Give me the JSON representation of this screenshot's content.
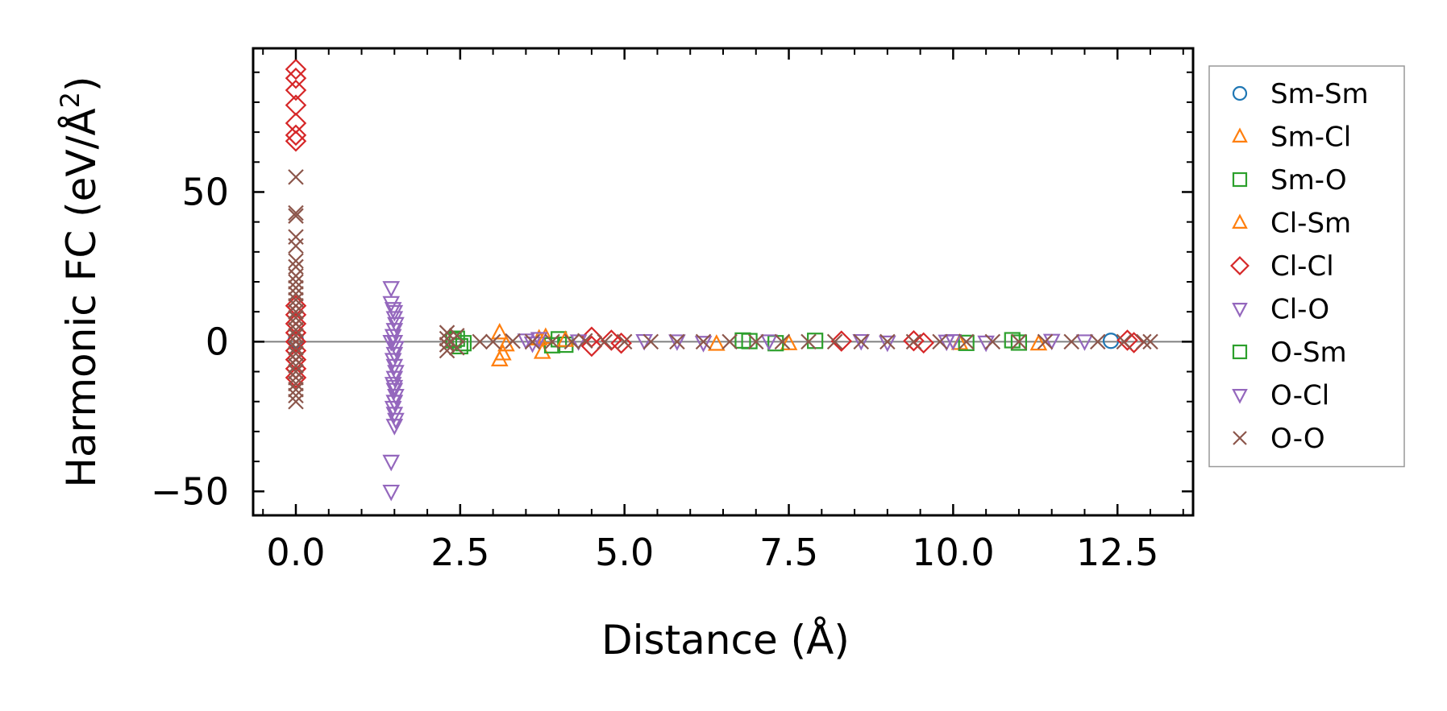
{
  "chart_data": {
    "type": "scatter",
    "title": "",
    "xlabel": "Distance (Å)",
    "ylabel": "Harmonic FC (eV/Å²)",
    "ylabel_parts": {
      "main": "Harmonic FC (eV/Å",
      "sup": "2",
      "close": ")"
    },
    "xlim": [
      -0.65,
      13.65
    ],
    "ylim": [
      -58,
      98
    ],
    "xticks": [
      0.0,
      2.5,
      5.0,
      7.5,
      10.0,
      12.5
    ],
    "xtick_labels": [
      "0.0",
      "2.5",
      "5.0",
      "7.5",
      "10.0",
      "12.5"
    ],
    "yticks": [
      -50,
      0,
      50
    ],
    "ytick_labels": [
      "−50",
      "0",
      "50"
    ],
    "reference_line_y": 0,
    "grid": false,
    "legend_position": "outside-right",
    "series": [
      {
        "name": "Sm-Sm",
        "marker": "circle",
        "color": "#1f77b4",
        "points": [
          [
            0.0,
            0.5
          ],
          [
            12.4,
            0.3
          ]
        ]
      },
      {
        "name": "Sm-Cl",
        "marker": "triangle-up",
        "color": "#ff7f0e",
        "points": [
          [
            3.1,
            -6
          ],
          [
            3.15,
            -4
          ],
          [
            3.1,
            3
          ],
          [
            3.75,
            -3.5
          ],
          [
            3.8,
            1.5
          ],
          [
            6.4,
            -0.8
          ],
          [
            7.5,
            -0.6
          ],
          [
            10.1,
            -0.5
          ],
          [
            11.3,
            -0.7
          ]
        ]
      },
      {
        "name": "Sm-O",
        "marker": "square",
        "color": "#2ca02c",
        "points": [
          [
            2.4,
            0.5
          ],
          [
            2.5,
            -1.5
          ],
          [
            3.9,
            -1.2
          ],
          [
            4.0,
            0.8
          ],
          [
            4.1,
            -1
          ],
          [
            6.9,
            0.2
          ],
          [
            7.3,
            -0.5
          ],
          [
            7.9,
            0.3
          ],
          [
            10.2,
            -0.4
          ],
          [
            10.9,
            0.5
          ]
        ]
      },
      {
        "name": "Cl-Sm",
        "marker": "triangle-up",
        "color": "#ff7f0e",
        "points": [
          [
            3.2,
            -1
          ],
          [
            3.7,
            1
          ],
          [
            4.1,
            0.5
          ]
        ]
      },
      {
        "name": "Cl-Cl",
        "marker": "diamond",
        "color": "#d62728",
        "points": [
          [
            0.0,
            91
          ],
          [
            0.0,
            88
          ],
          [
            0.0,
            84
          ],
          [
            0.0,
            79
          ],
          [
            0.0,
            73
          ],
          [
            0.0,
            69
          ],
          [
            0.0,
            67
          ],
          [
            0.0,
            12
          ],
          [
            0.0,
            9
          ],
          [
            0.0,
            6
          ],
          [
            0.0,
            3
          ],
          [
            0.0,
            0
          ],
          [
            0.0,
            -3
          ],
          [
            0.0,
            -6
          ],
          [
            0.0,
            -9
          ],
          [
            0.0,
            -12
          ],
          [
            4.5,
            1.5
          ],
          [
            4.5,
            -1.5
          ],
          [
            4.8,
            0.5
          ],
          [
            4.95,
            -0.5
          ],
          [
            8.3,
            0.2
          ],
          [
            9.4,
            0.3
          ],
          [
            9.55,
            -0.4
          ],
          [
            12.65,
            0.5
          ],
          [
            12.75,
            -0.3
          ]
        ]
      },
      {
        "name": "Cl-O",
        "marker": "triangle-down",
        "color": "#9467bd",
        "points": [
          [
            1.45,
            18
          ],
          [
            1.45,
            13
          ],
          [
            1.48,
            11
          ],
          [
            1.5,
            10
          ],
          [
            1.5,
            8
          ],
          [
            1.52,
            6
          ],
          [
            1.5,
            4
          ],
          [
            1.48,
            2
          ],
          [
            1.5,
            0
          ],
          [
            1.52,
            -2
          ],
          [
            1.5,
            -4
          ],
          [
            1.48,
            -6
          ],
          [
            1.5,
            -8
          ],
          [
            1.52,
            -10
          ],
          [
            1.5,
            -12
          ],
          [
            1.48,
            -14
          ],
          [
            1.5,
            -16
          ],
          [
            1.52,
            -18
          ],
          [
            1.5,
            -20
          ],
          [
            1.48,
            -22
          ],
          [
            1.5,
            -24
          ],
          [
            1.52,
            -26
          ],
          [
            1.5,
            -28
          ],
          [
            1.45,
            -40
          ],
          [
            1.45,
            -50
          ],
          [
            3.5,
            0.5
          ],
          [
            3.7,
            1
          ],
          [
            4.3,
            0.2
          ],
          [
            5.3,
            0.3
          ],
          [
            6.2,
            -0.3
          ],
          [
            7.2,
            0.2
          ],
          [
            8.6,
            0.3
          ],
          [
            9.0,
            -0.2
          ],
          [
            10.0,
            0.3
          ],
          [
            10.5,
            -0.2
          ],
          [
            11.5,
            0.4
          ],
          [
            12.0,
            0.2
          ]
        ]
      },
      {
        "name": "O-Sm",
        "marker": "square",
        "color": "#2ca02c",
        "points": [
          [
            2.45,
            1
          ],
          [
            2.55,
            -0.5
          ],
          [
            6.8,
            0.4
          ],
          [
            11.0,
            -0.3
          ]
        ]
      },
      {
        "name": "O-Cl",
        "marker": "triangle-down",
        "color": "#9467bd",
        "points": [
          [
            1.5,
            -15
          ],
          [
            1.5,
            -20
          ],
          [
            1.45,
            0
          ],
          [
            3.6,
            -0.5
          ],
          [
            5.8,
            0.2
          ],
          [
            9.9,
            0.1
          ]
        ]
      },
      {
        "name": "O-O",
        "marker": "x",
        "color": "#8c564b",
        "points": [
          [
            0.0,
            55
          ],
          [
            0.0,
            43
          ],
          [
            0.0,
            42
          ],
          [
            0.0,
            35
          ],
          [
            0.0,
            32
          ],
          [
            0.0,
            27
          ],
          [
            0.0,
            25
          ],
          [
            0.0,
            22
          ],
          [
            0.0,
            20
          ],
          [
            0.0,
            18
          ],
          [
            0.0,
            16
          ],
          [
            0.0,
            14
          ],
          [
            0.0,
            12
          ],
          [
            0.0,
            10
          ],
          [
            0.0,
            8
          ],
          [
            0.0,
            6
          ],
          [
            0.0,
            4
          ],
          [
            0.0,
            2
          ],
          [
            0.0,
            0
          ],
          [
            0.0,
            -2
          ],
          [
            0.0,
            -4
          ],
          [
            0.0,
            -6
          ],
          [
            0.0,
            -8
          ],
          [
            0.0,
            -10
          ],
          [
            0.0,
            -12
          ],
          [
            0.0,
            -14
          ],
          [
            0.0,
            -16
          ],
          [
            0.0,
            -18
          ],
          [
            0.0,
            -20
          ],
          [
            2.3,
            3
          ],
          [
            2.3,
            1
          ],
          [
            2.3,
            -1
          ],
          [
            2.3,
            -3
          ],
          [
            2.45,
            2
          ],
          [
            2.45,
            -2
          ],
          [
            2.8,
            0
          ],
          [
            3.0,
            0
          ],
          [
            3.3,
            0.2
          ],
          [
            3.6,
            0
          ],
          [
            3.9,
            0
          ],
          [
            4.2,
            0
          ],
          [
            4.4,
            0.3
          ],
          [
            4.7,
            0
          ],
          [
            5.0,
            0
          ],
          [
            5.4,
            0
          ],
          [
            5.8,
            0
          ],
          [
            6.2,
            0
          ],
          [
            6.6,
            0
          ],
          [
            7.0,
            0
          ],
          [
            7.4,
            0
          ],
          [
            7.8,
            0
          ],
          [
            8.2,
            0
          ],
          [
            8.6,
            0
          ],
          [
            9.0,
            0
          ],
          [
            9.4,
            0
          ],
          [
            9.8,
            0
          ],
          [
            10.2,
            0
          ],
          [
            10.6,
            0
          ],
          [
            11.0,
            0
          ],
          [
            11.4,
            0
          ],
          [
            11.8,
            0
          ],
          [
            12.2,
            0
          ],
          [
            12.6,
            0
          ],
          [
            12.9,
            0
          ],
          [
            13.0,
            0
          ]
        ]
      }
    ]
  }
}
